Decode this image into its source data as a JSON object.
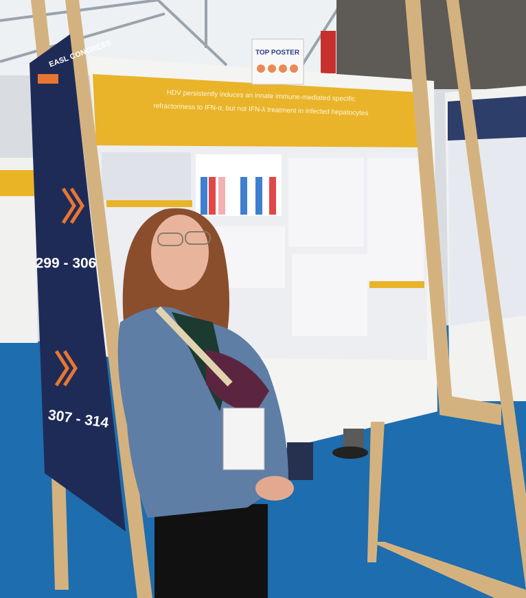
{
  "banner": {
    "brand": "EASL CONGRESS",
    "ranges": [
      "299 - 306",
      "307 - 314"
    ]
  },
  "sign": "TOP POSTER",
  "poster": {
    "title_lines": [
      "HDV persistently induces an innate immune-mediated specific",
      "refractoriness to IFN-α, but not IFN-λ treatment in infected hepatocytes"
    ]
  }
}
